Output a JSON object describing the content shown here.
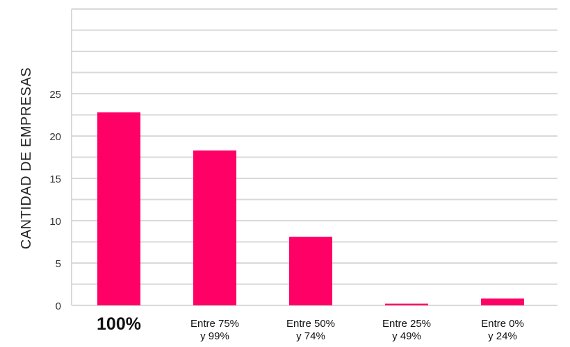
{
  "chart_data": {
    "type": "bar",
    "title": "",
    "xlabel": "",
    "ylabel": "CANTIDAD DE EMPRESAS",
    "categories": [
      [
        "100%"
      ],
      [
        "Entre 75%",
        "y 99%"
      ],
      [
        "Entre 50%",
        "y 74%"
      ],
      [
        "Entre 25%",
        "y 49%"
      ],
      [
        "Entre 0%",
        "y 24%"
      ]
    ],
    "values": [
      22.8,
      18.3,
      8.1,
      0.2,
      0.8
    ],
    "ylim": [
      0,
      35
    ],
    "yticks": [
      0,
      5,
      10,
      15,
      20,
      25
    ],
    "gridlines": [
      0,
      2.5,
      5,
      7.5,
      10,
      12.5,
      15,
      17.5,
      20,
      22.5,
      25,
      27.5,
      30,
      32.5,
      35
    ],
    "grid": true,
    "bar_color": "#FF0066",
    "grid_color": "#d9d9d9",
    "highlight_category_index": 0
  }
}
